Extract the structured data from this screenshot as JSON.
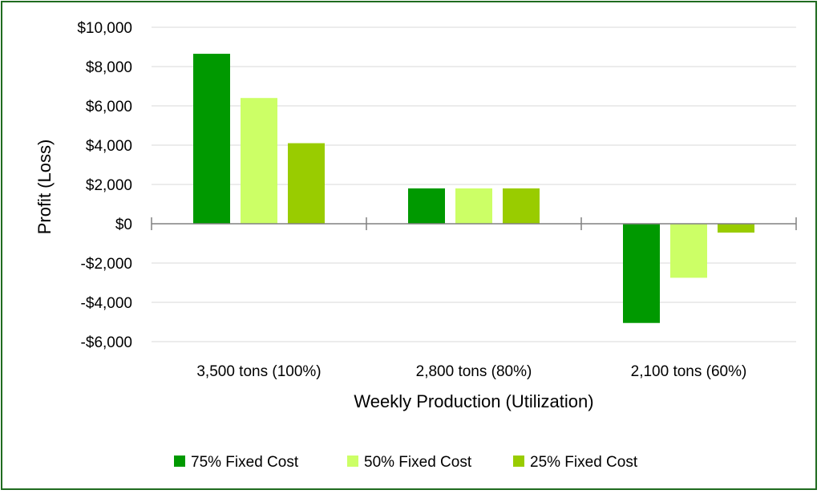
{
  "chart_data": {
    "type": "bar",
    "title": "",
    "xlabel": "Weekly Production (Utilization)",
    "ylabel": "Profit (Loss)",
    "ylim": [
      -6000,
      10000
    ],
    "yticks": [
      10000,
      8000,
      6000,
      4000,
      2000,
      0,
      -2000,
      -4000,
      -6000
    ],
    "ytick_labels": [
      "$10,000",
      "$8,000",
      "$6,000",
      "$4,000",
      "$2,000",
      "$0",
      "-$2,000",
      "-$4,000",
      "-$6,000"
    ],
    "categories": [
      "3,500 tons (100%)",
      "2,800 tons (80%)",
      "2,100 tons (60%)"
    ],
    "series": [
      {
        "name": "75% Fixed Cost",
        "color": "#009900",
        "values": [
          8650,
          1800,
          -5050
        ]
      },
      {
        "name": "50% Fixed Cost",
        "color": "#ccff66",
        "values": [
          6400,
          1800,
          -2750
        ]
      },
      {
        "name": "25% Fixed Cost",
        "color": "#99cc00",
        "values": [
          4100,
          1800,
          -450
        ]
      }
    ],
    "grid": true,
    "legend_position": "bottom",
    "gridline_color": "#d9d9d9",
    "axis_color": "#808080",
    "frame_color": "#1f6b1f"
  }
}
